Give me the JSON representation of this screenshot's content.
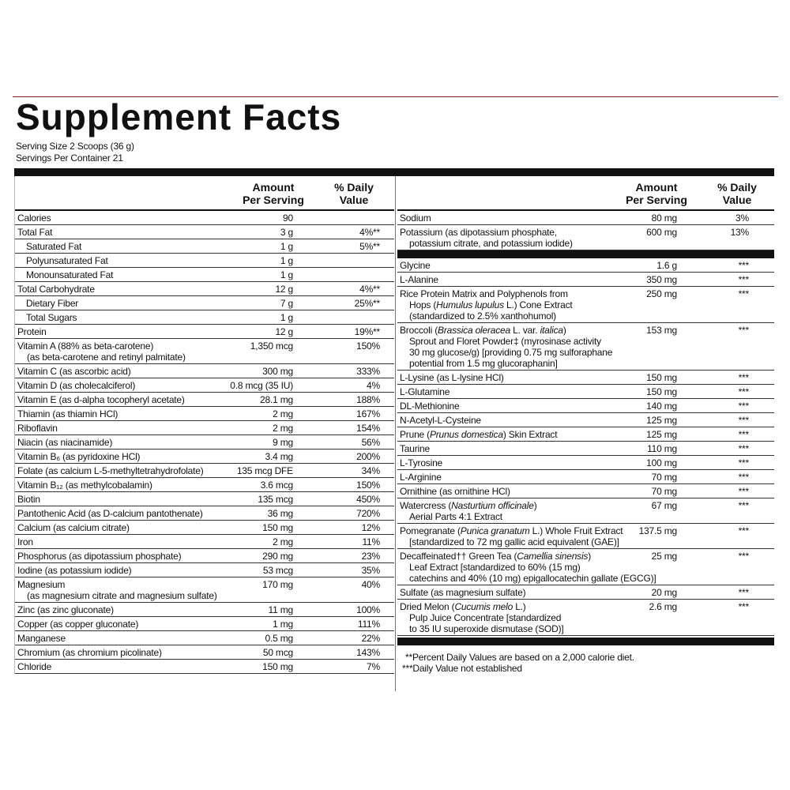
{
  "title": "Supplement Facts",
  "serving_size": "Serving Size 2 Scoops (36 g)",
  "servings_per_container": "Servings Per Container 21",
  "header": {
    "amount": [
      "Amount",
      "Per Serving"
    ],
    "daily_value": [
      "% Daily",
      "Value"
    ]
  },
  "left_rows": [
    {
      "name": [
        "Calories"
      ],
      "amount": "90"
    },
    {
      "name": [
        "Total Fat"
      ],
      "amount": "3 g",
      "dv": "4%**"
    },
    {
      "name": [
        "Saturated Fat"
      ],
      "amount": "1 g",
      "dv": "5%**",
      "indent": true
    },
    {
      "name": [
        "Polyunsaturated Fat"
      ],
      "amount": "1 g",
      "indent": true
    },
    {
      "name": [
        "Monounsaturated Fat"
      ],
      "amount": "1 g",
      "indent": true
    },
    {
      "name": [
        "Total Carbohydrate"
      ],
      "amount": "12 g",
      "dv": "4%**"
    },
    {
      "name": [
        "Dietary Fiber"
      ],
      "amount": "7 g",
      "dv": "25%**",
      "indent": true
    },
    {
      "name": [
        "Total Sugars"
      ],
      "amount": "1 g",
      "indent": true
    },
    {
      "name": [
        "Protein"
      ],
      "amount": "12 g",
      "dv": "19%**"
    },
    {
      "name": [
        "Vitamin A (88% as beta-carotene)",
        "(as beta-carotene and retinyl palmitate)"
      ],
      "amount": "1,350 mcg",
      "dv": "150%"
    },
    {
      "name": [
        "Vitamin C (as ascorbic acid)"
      ],
      "amount": "300 mg",
      "dv": "333%"
    },
    {
      "name": [
        "Vitamin D (as cholecalciferol)"
      ],
      "amount": "0.8 mcg (35 IU)",
      "dv": "4%"
    },
    {
      "name": [
        "Vitamin E (as d-alpha tocopheryl acetate)"
      ],
      "amount": "28.1 mg",
      "dv": "188%"
    },
    {
      "name": [
        "Thiamin (as thiamin HCl)"
      ],
      "amount": "2 mg",
      "dv": "167%"
    },
    {
      "name": [
        "Riboflavin"
      ],
      "amount": "2 mg",
      "dv": "154%"
    },
    {
      "name": [
        "Niacin (as niacinamide)"
      ],
      "amount": "9 mg",
      "dv": "56%"
    },
    {
      "name": [
        "Vitamin B₆ (as pyridoxine HCl)"
      ],
      "amount": "3.4 mg",
      "dv": "200%"
    },
    {
      "name": [
        "Folate (as calcium L-5-methyltetrahydrofolate)"
      ],
      "amount": "135 mcg DFE",
      "dv": "34%"
    },
    {
      "name": [
        "Vitamin B₁₂ (as methylcobalamin)"
      ],
      "amount": "3.6 mcg",
      "dv": "150%"
    },
    {
      "name": [
        "Biotin"
      ],
      "amount": "135 mcg",
      "dv": "450%"
    },
    {
      "name": [
        "Pantothenic Acid (as D-calcium pantothenate)"
      ],
      "amount": "36 mg",
      "dv": "720%"
    },
    {
      "name": [
        "Calcium (as calcium citrate)"
      ],
      "amount": "150 mg",
      "dv": "12%"
    },
    {
      "name": [
        "Iron"
      ],
      "amount": "2 mg",
      "dv": "11%"
    },
    {
      "name": [
        "Phosphorus (as dipotassium phosphate)"
      ],
      "amount": "290 mg",
      "dv": "23%"
    },
    {
      "name": [
        "Iodine (as potassium iodide)"
      ],
      "amount": "53 mcg",
      "dv": "35%"
    },
    {
      "name": [
        "Magnesium",
        "(as magnesium citrate and magnesium sulfate)"
      ],
      "amount": "170 mg",
      "dv": "40%"
    },
    {
      "name": [
        "Zinc (as zinc gluconate)"
      ],
      "amount": "11 mg",
      "dv": "100%"
    },
    {
      "name": [
        "Copper (as copper gluconate)"
      ],
      "amount": "1 mg",
      "dv": "111%"
    },
    {
      "name": [
        "Manganese"
      ],
      "amount": "0.5 mg",
      "dv": "22%"
    },
    {
      "name": [
        "Chromium (as chromium picolinate)"
      ],
      "amount": "50 mcg",
      "dv": "143%"
    },
    {
      "name": [
        "Chloride"
      ],
      "amount": "150 mg",
      "dv": "7%"
    }
  ],
  "right_groups": [
    [
      {
        "name": [
          "Sodium"
        ],
        "amount": "80 mg",
        "dv": "3%"
      },
      {
        "name": [
          "Potassium (as dipotassium phosphate,",
          "potassium citrate, and potassium iodide)"
        ],
        "amount": "600 mg",
        "dv": "13%"
      }
    ],
    [
      {
        "name": [
          "Glycine"
        ],
        "amount": "1.6 g",
        "dv": "***"
      },
      {
        "name": [
          "L-Alanine"
        ],
        "amount": "350 mg",
        "dv": "***"
      },
      {
        "name": [
          "Rice Protein Matrix and Polyphenols from",
          [
            "Hops (",
            "Humulus lupulus",
            " L.) Cone Extract"
          ],
          "(standardized to 2.5% xanthohumol)"
        ],
        "amount": "250 mg",
        "dv": "***"
      },
      {
        "name": [
          [
            "Broccoli (",
            "Brassica oleracea",
            " L. var. ",
            "italica",
            ")"
          ],
          "Sprout and Floret Powder‡ (myrosinase activity",
          "30 mg glucose/g) [providing 0.75 mg sulforaphane",
          "potential from 1.5 mg glucoraphanin]"
        ],
        "amount": "153 mg",
        "dv": "***"
      },
      {
        "name": [
          "L-Lysine (as L-lysine HCl)"
        ],
        "amount": "150 mg",
        "dv": "***"
      },
      {
        "name": [
          "L-Glutamine"
        ],
        "amount": "150 mg",
        "dv": "***"
      },
      {
        "name": [
          "DL-Methionine"
        ],
        "amount": "140 mg",
        "dv": "***"
      },
      {
        "name": [
          "N-Acetyl-L-Cysteine"
        ],
        "amount": "125 mg",
        "dv": "***"
      },
      {
        "name": [
          [
            "Prune (",
            "Prunus domestica",
            ") Skin Extract"
          ]
        ],
        "amount": "125 mg",
        "dv": "***"
      },
      {
        "name": [
          "Taurine"
        ],
        "amount": "110 mg",
        "dv": "***"
      },
      {
        "name": [
          "L-Tyrosine"
        ],
        "amount": "100 mg",
        "dv": "***"
      },
      {
        "name": [
          "L-Arginine"
        ],
        "amount": "70 mg",
        "dv": "***"
      },
      {
        "name": [
          "Ornithine (as ornithine HCl)"
        ],
        "amount": "70 mg",
        "dv": "***"
      },
      {
        "name": [
          [
            "Watercress (",
            "Nasturtium officinale",
            ")"
          ],
          "Aerial Parts 4:1 Extract"
        ],
        "amount": "67 mg",
        "dv": "***"
      },
      {
        "name": [
          [
            "Pomegranate (",
            "Punica granatum",
            " L.) Whole Fruit Extract"
          ],
          "[standardized to 72 mg gallic acid equivalent (GAE)]"
        ],
        "amount": "137.5 mg",
        "dv": "***"
      },
      {
        "name": [
          [
            "Decaffeinated†† Green Tea (",
            "Camellia sinensis",
            ")"
          ],
          "Leaf Extract [standardized to 60% (15 mg)",
          "catechins and 40% (10 mg) epigallocatechin gallate (EGCG)]"
        ],
        "amount": "25 mg",
        "dv": "***"
      },
      {
        "name": [
          "Sulfate (as magnesium sulfate)"
        ],
        "amount": "20 mg",
        "dv": "***"
      },
      {
        "name": [
          [
            "Dried Melon (",
            "Cucumis melo",
            " L.)"
          ],
          "Pulp Juice Concentrate [standardized",
          "to 35 IU superoxide dismutase (SOD)]"
        ],
        "amount": "2.6 mg",
        "dv": "***"
      }
    ]
  ],
  "footnotes": [
    "**Percent Daily Values are based on a 2,000 calorie diet.",
    "***Daily Value not established"
  ]
}
